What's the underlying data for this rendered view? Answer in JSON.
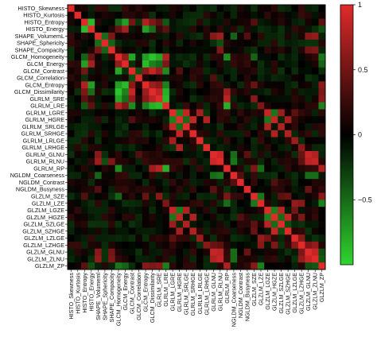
{
  "chart_data": {
    "type": "heatmap",
    "title": "",
    "xlabel": "",
    "ylabel": "",
    "variables": [
      "HISTO_Skewness",
      "HISTO_Kurtosis",
      "HISTO_Entropy",
      "HISTO_Energy",
      "SHAPE_VolumeML",
      "SHAPE_Sphericity",
      "SHAPE_Compacity",
      "GLCM_Homogeneity",
      "GLCM_Energy",
      "GLCM_Contrast",
      "GLCM_Correlation",
      "GLCM_Entropy",
      "GLCM_Dissimilarity",
      "GLRLM_SRE",
      "GLRLM_LRE",
      "GLRLM_LGRE",
      "GLRLM_HGRE",
      "GLRLM_SRLGE",
      "GLRLM_SRHGE",
      "GLRLM_LRLGE",
      "GLRLM_LRHGE",
      "GLRLM_GLNU",
      "GLRLM_RLNU",
      "GLRLM_RP",
      "NGLDM_Coarseness",
      "NGLDM_Contrast",
      "NGLDM_Busyness",
      "GLZLM_SZE",
      "GLZLM_LZE",
      "GLZLM_LGZE",
      "GLZLM_HGZE",
      "GLZLM_SZLGE",
      "GLZLM_SZHGE",
      "GLZLM_LZLGE",
      "GLZLM_LZHGE",
      "GLZLM_GLNU",
      "GLZLM_ZLNU",
      "GLZLM_ZP"
    ],
    "y_tick_labels": [
      "HISTO_Skewness",
      "HISTO_Kurtosis",
      "HISTO_Entropy",
      "HISTO_Energy",
      "SHAPE_VolumemL",
      "SHAPE_Sphericity",
      "SHAPE_Compacity",
      "GLCM_Homogeneity",
      "GLCM_Energy",
      "GLCM_Contrast",
      "GLCM_Correlation",
      "GLCM_Entropy",
      "GLCM_Dissimilarity",
      "GLRLM_SRE",
      "GLRLM_LRE",
      "GLRLM_LGRE",
      "GLRLM_HGRE",
      "GLRLM_SRLGE",
      "GLRLM_SRHGE",
      "GLRLM_LRLGE",
      "GLRLM_LRHGE",
      "GLRLM_GLNU",
      "GLRLM_RLNU",
      "GLRLM_RP",
      "NGLDM_Coarseness",
      "NGLDM_Contrast",
      "NGLDM_Busyness",
      "GLZLM_SZE",
      "GLZLM_LZE",
      "GLZLM_LGZE",
      "GLZLM_HGZE",
      "GLZLM_SZLGE",
      "GLZLM_SZHGE",
      "GLZLM_LZLGE",
      "GLZLM_LZHGE",
      "GLZLM_GLNU",
      "GLZLM_ZLNU",
      "GLZLM_ZP"
    ],
    "x_tick_labels": [
      "HISTO_Skewness",
      "HISTO_Kurtosis",
      "HISTO_Entropy",
      "HISTO_Energy",
      "SHAPE_Volumeml",
      "SHAPE_Sphericity",
      "SHAPE_Compacity",
      "GLCM_Homogeneity",
      "GLCM_Energy",
      "GLCM_Contrast",
      "GLCM_Correlation",
      "GLCM_Entropy",
      "GLCM_Dissimilarity",
      "GLRLM_SRE",
      "GLRLM_LRE",
      "GLRLM_LGRE",
      "GLRLM_HGRE",
      "GLRLM_SRLGE",
      "GLRLM_SRHGE",
      "GLRLM_LRLGE",
      "GLRLM_LRHGE",
      "GLRLM_GLNU",
      "GLRLM_RLNU",
      "GLRLM_RP",
      "NGLDM_Coarseness",
      "NGLDM_Contrast",
      "NGLDM_Busyness",
      "GLZLM_SZE",
      "GLZLM_LZE",
      "GLZLM_LGZE",
      "GLZLM_HGZE",
      "GLZLM_SZLGE",
      "GLZLM_SZHGE",
      "GLZLM_LZLGE",
      "GLZLM_LZHGE",
      "GLZLM_GLNU",
      "GLZLM_ZLNU",
      "GLZLM_ZP"
    ],
    "value_range": [
      -1,
      1
    ],
    "colorbar": {
      "ticks": [
        1,
        0.5,
        0,
        -0.5
      ],
      "tick_labels": [
        "1",
        "0.5",
        "0",
        "−0.5"
      ],
      "colors": {
        "high": "#e12a2a",
        "mid": "#000000",
        "low": "#2fd52f"
      }
    },
    "groups": [
      {
        "name": "HISTO",
        "indices": [
          0,
          1,
          2,
          3
        ]
      },
      {
        "name": "SHAPE",
        "indices": [
          4,
          5,
          6
        ]
      },
      {
        "name": "GLCM",
        "indices": [
          7,
          8,
          9,
          10,
          11,
          12
        ]
      },
      {
        "name": "GLRLM",
        "indices": [
          13,
          14,
          15,
          16,
          17,
          18,
          19,
          20,
          21,
          22,
          23
        ]
      },
      {
        "name": "NGLDM",
        "indices": [
          24,
          25,
          26
        ]
      },
      {
        "name": "GLZLM",
        "indices": [
          27,
          28,
          29,
          30,
          31,
          32,
          33,
          34,
          35,
          36,
          37
        ]
      }
    ],
    "correlations_estimated": [
      {
        "pair": [
          "HISTO_Entropy",
          "HISTO_Energy"
        ],
        "r": -0.85
      },
      {
        "pair": [
          "HISTO_Entropy",
          "GLCM_Entropy"
        ],
        "r": 0.75
      },
      {
        "pair": [
          "HISTO_Energy",
          "GLCM_Energy"
        ],
        "r": 0.7
      },
      {
        "pair": [
          "HISTO_Entropy",
          "GLCM_Energy"
        ],
        "r": -0.7
      },
      {
        "pair": [
          "HISTO_Energy",
          "GLCM_Entropy"
        ],
        "r": -0.7
      },
      {
        "pair": [
          "HISTO_Entropy",
          "GLCM_Homogeneity"
        ],
        "r": -0.4
      },
      {
        "pair": [
          "HISTO_Entropy",
          "GLCM_Contrast"
        ],
        "r": 0.45
      },
      {
        "pair": [
          "HISTO_Entropy",
          "GLCM_Dissimilarity"
        ],
        "r": 0.5
      },
      {
        "pair": [
          "HISTO_Energy",
          "GLCM_Homogeneity"
        ],
        "r": 0.4
      },
      {
        "pair": [
          "HISTO_Energy",
          "GLCM_Dissimilarity"
        ],
        "r": -0.45
      },
      {
        "pair": [
          "HISTO_Entropy",
          "GLRLM_SRE"
        ],
        "r": 0.35
      },
      {
        "pair": [
          "HISTO_Entropy",
          "GLRLM_LRE"
        ],
        "r": -0.35
      },
      {
        "pair": [
          "HISTO_Energy",
          "GLRLM_LRE"
        ],
        "r": 0.35
      },
      {
        "pair": [
          "HISTO_Entropy",
          "GLZLM_SZE"
        ],
        "r": 0.3
      },
      {
        "pair": [
          "HISTO_Energy",
          "GLZLM_ZP"
        ],
        "r": -0.3
      },
      {
        "pair": [
          "HISTO_Entropy",
          "GLZLM_ZP"
        ],
        "r": 0.35
      },
      {
        "pair": [
          "SHAPE_VolumeML",
          "GLRLM_GLNU"
        ],
        "r": 0.55
      },
      {
        "pair": [
          "SHAPE_VolumeML",
          "GLRLM_RLNU"
        ],
        "r": 0.65
      },
      {
        "pair": [
          "SHAPE_VolumeML",
          "GLZLM_GLNU"
        ],
        "r": 0.55
      },
      {
        "pair": [
          "SHAPE_VolumeML",
          "GLZLM_ZLNU"
        ],
        "r": 0.6
      },
      {
        "pair": [
          "SHAPE_VolumeML",
          "SHAPE_Sphericity"
        ],
        "r": -0.45
      },
      {
        "pair": [
          "SHAPE_VolumeML",
          "SHAPE_Compacity"
        ],
        "r": 0.5
      },
      {
        "pair": [
          "SHAPE_VolumeML",
          "NGLDM_Coarseness"
        ],
        "r": -0.4
      },
      {
        "pair": [
          "SHAPE_VolumeML",
          "NGLDM_Busyness"
        ],
        "r": 0.3
      },
      {
        "pair": [
          "SHAPE_Sphericity",
          "SHAPE_Compacity"
        ],
        "r": -0.4
      },
      {
        "pair": [
          "SHAPE_Sphericity",
          "GLRLM_RLNU"
        ],
        "r": -0.3
      },
      {
        "pair": [
          "SHAPE_Compacity",
          "GLRLM_RLNU"
        ],
        "r": 0.5
      },
      {
        "pair": [
          "SHAPE_Compacity",
          "GLZLM_ZLNU"
        ],
        "r": 0.5
      },
      {
        "pair": [
          "SHAPE_Compacity",
          "GLZLM_GLNU"
        ],
        "r": 0.45
      },
      {
        "pair": [
          "GLCM_Homogeneity",
          "GLCM_Energy"
        ],
        "r": 0.6
      },
      {
        "pair": [
          "GLCM_Homogeneity",
          "GLCM_Contrast"
        ],
        "r": -0.75
      },
      {
        "pair": [
          "GLCM_Homogeneity",
          "GLCM_Entropy"
        ],
        "r": -0.7
      },
      {
        "pair": [
          "GLCM_Homogeneity",
          "GLCM_Dissimilarity"
        ],
        "r": -0.9
      },
      {
        "pair": [
          "GLCM_Homogeneity",
          "GLRLM_SRE"
        ],
        "r": -0.75
      },
      {
        "pair": [
          "GLCM_Homogeneity",
          "GLRLM_LRE"
        ],
        "r": 0.75
      },
      {
        "pair": [
          "GLCM_Homogeneity",
          "GLRLM_RP"
        ],
        "r": -0.6
      },
      {
        "pair": [
          "GLCM_Homogeneity",
          "GLZLM_SZE"
        ],
        "r": -0.4
      },
      {
        "pair": [
          "GLCM_Homogeneity",
          "GLZLM_ZP"
        ],
        "r": -0.5
      },
      {
        "pair": [
          "GLCM_Energy",
          "GLCM_Entropy"
        ],
        "r": -0.85
      },
      {
        "pair": [
          "GLCM_Energy",
          "GLCM_Dissimilarity"
        ],
        "r": -0.55
      },
      {
        "pair": [
          "GLCM_Energy",
          "GLRLM_SRE"
        ],
        "r": -0.45
      },
      {
        "pair": [
          "GLCM_Energy",
          "GLRLM_LRE"
        ],
        "r": 0.5
      },
      {
        "pair": [
          "GLCM_Energy",
          "GLZLM_ZP"
        ],
        "r": -0.4
      },
      {
        "pair": [
          "GLCM_Contrast",
          "GLCM_Dissimilarity"
        ],
        "r": 0.85
      },
      {
        "pair": [
          "GLCM_Contrast",
          "GLCM_Entropy"
        ],
        "r": 0.55
      },
      {
        "pair": [
          "GLCM_Contrast",
          "GLRLM_SRE"
        ],
        "r": 0.6
      },
      {
        "pair": [
          "GLCM_Contrast",
          "GLRLM_LRE"
        ],
        "r": -0.6
      },
      {
        "pair": [
          "GLCM_Contrast",
          "GLRLM_HGRE"
        ],
        "r": 0.3
      },
      {
        "pair": [
          "GLCM_Correlation",
          "GLRLM_GLNU"
        ],
        "r": 0.3
      },
      {
        "pair": [
          "GLCM_Correlation",
          "GLCM_Contrast"
        ],
        "r": -0.3
      },
      {
        "pair": [
          "GLCM_Entropy",
          "GLCM_Dissimilarity"
        ],
        "r": 0.65
      },
      {
        "pair": [
          "GLCM_Entropy",
          "GLRLM_SRE"
        ],
        "r": 0.55
      },
      {
        "pair": [
          "GLCM_Entropy",
          "GLRLM_LRE"
        ],
        "r": -0.55
      },
      {
        "pair": [
          "GLCM_Entropy",
          "GLZLM_ZP"
        ],
        "r": 0.55
      },
      {
        "pair": [
          "GLCM_Entropy",
          "GLZLM_SZE"
        ],
        "r": 0.4
      },
      {
        "pair": [
          "GLCM_Dissimilarity",
          "GLRLM_SRE"
        ],
        "r": 0.8
      },
      {
        "pair": [
          "GLCM_Dissimilarity",
          "GLRLM_LRE"
        ],
        "r": -0.8
      },
      {
        "pair": [
          "GLCM_Dissimilarity",
          "GLRLM_RP"
        ],
        "r": 0.65
      },
      {
        "pair": [
          "GLCM_Dissimilarity",
          "GLZLM_ZP"
        ],
        "r": 0.5
      },
      {
        "pair": [
          "GLRLM_SRE",
          "GLRLM_LRE"
        ],
        "r": -0.85
      },
      {
        "pair": [
          "GLRLM_SRE",
          "GLRLM_RP"
        ],
        "r": 0.8
      },
      {
        "pair": [
          "GLRLM_SRE",
          "GLZLM_SZE"
        ],
        "r": 0.55
      },
      {
        "pair": [
          "GLRLM_SRE",
          "GLZLM_ZP"
        ],
        "r": 0.55
      },
      {
        "pair": [
          "GLRLM_LRE",
          "GLRLM_RP"
        ],
        "r": -0.8
      },
      {
        "pair": [
          "GLRLM_LRE",
          "GLZLM_LZE"
        ],
        "r": 0.5
      },
      {
        "pair": [
          "GLRLM_LRE",
          "GLZLM_ZP"
        ],
        "r": -0.55
      },
      {
        "pair": [
          "GLRLM_LGRE",
          "GLRLM_HGRE"
        ],
        "r": -0.55
      },
      {
        "pair": [
          "GLRLM_LGRE",
          "GLRLM_SRLGE"
        ],
        "r": 0.85
      },
      {
        "pair": [
          "GLRLM_LGRE",
          "GLRLM_LRLGE"
        ],
        "r": 0.7
      },
      {
        "pair": [
          "GLRLM_LGRE",
          "GLZLM_LGZE"
        ],
        "r": 0.85
      },
      {
        "pair": [
          "GLRLM_LGRE",
          "GLZLM_SZLGE"
        ],
        "r": 0.65
      },
      {
        "pair": [
          "GLRLM_LGRE",
          "GLZLM_LZLGE"
        ],
        "r": 0.35
      },
      {
        "pair": [
          "GLRLM_LGRE",
          "GLZLM_HGZE"
        ],
        "r": -0.5
      },
      {
        "pair": [
          "GLRLM_HGRE",
          "GLRLM_SRHGE"
        ],
        "r": 0.85
      },
      {
        "pair": [
          "GLRLM_HGRE",
          "GLRLM_LRHGE"
        ],
        "r": 0.75
      },
      {
        "pair": [
          "GLRLM_HGRE",
          "GLZLM_HGZE"
        ],
        "r": 0.85
      },
      {
        "pair": [
          "GLRLM_HGRE",
          "GLZLM_SZHGE"
        ],
        "r": 0.7
      },
      {
        "pair": [
          "GLRLM_HGRE",
          "GLZLM_LGZE"
        ],
        "r": -0.5
      },
      {
        "pair": [
          "GLRLM_HGRE",
          "GLRLM_SRLGE"
        ],
        "r": -0.45
      },
      {
        "pair": [
          "GLRLM_SRLGE",
          "GLZLM_SZLGE"
        ],
        "r": 0.75
      },
      {
        "pair": [
          "GLRLM_SRLGE",
          "GLZLM_LGZE"
        ],
        "r": 0.75
      },
      {
        "pair": [
          "GLRLM_SRHGE",
          "GLZLM_SZHGE"
        ],
        "r": 0.75
      },
      {
        "pair": [
          "GLRLM_SRHGE",
          "GLZLM_HGZE"
        ],
        "r": 0.75
      },
      {
        "pair": [
          "GLRLM_LRLGE",
          "GLZLM_LZLGE"
        ],
        "r": 0.65
      },
      {
        "pair": [
          "GLRLM_LRHGE",
          "GLZLM_LZHGE"
        ],
        "r": 0.55
      },
      {
        "pair": [
          "GLRLM_GLNU",
          "GLRLM_RLNU"
        ],
        "r": 0.9
      },
      {
        "pair": [
          "GLRLM_GLNU",
          "GLZLM_GLNU"
        ],
        "r": 0.85
      },
      {
        "pair": [
          "GLRLM_GLNU",
          "GLZLM_ZLNU"
        ],
        "r": 0.75
      },
      {
        "pair": [
          "GLRLM_GLNU",
          "NGLDM_Coarseness"
        ],
        "r": -0.45
      },
      {
        "pair": [
          "GLRLM_GLNU",
          "NGLDM_Busyness"
        ],
        "r": 0.35
      },
      {
        "pair": [
          "GLRLM_GLNU",
          "GLZLM_LZHGE"
        ],
        "r": 0.4
      },
      {
        "pair": [
          "GLRLM_RLNU",
          "GLZLM_GLNU"
        ],
        "r": 0.8
      },
      {
        "pair": [
          "GLRLM_RLNU",
          "GLZLM_ZLNU"
        ],
        "r": 0.85
      },
      {
        "pair": [
          "GLRLM_RLNU",
          "NGLDM_Coarseness"
        ],
        "r": -0.5
      },
      {
        "pair": [
          "GLRLM_RLNU",
          "GLZLM_LZHGE"
        ],
        "r": 0.35
      },
      {
        "pair": [
          "GLRLM_RP",
          "GLZLM_ZP"
        ],
        "r": 0.75
      },
      {
        "pair": [
          "GLRLM_RP",
          "GLZLM_SZE"
        ],
        "r": 0.5
      },
      {
        "pair": [
          "GLRLM_RP",
          "GLZLM_LZE"
        ],
        "r": -0.45
      },
      {
        "pair": [
          "NGLDM_Coarseness",
          "NGLDM_Contrast"
        ],
        "r": 0.3
      },
      {
        "pair": [
          "NGLDM_Coarseness",
          "GLZLM_GLNU"
        ],
        "r": -0.45
      },
      {
        "pair": [
          "NGLDM_Coarseness",
          "GLZLM_ZLNU"
        ],
        "r": -0.45
      },
      {
        "pair": [
          "NGLDM_Contrast",
          "GLZLM_HGZE"
        ],
        "r": 0.3
      },
      {
        "pair": [
          "NGLDM_Busyness",
          "GLZLM_GLNU"
        ],
        "r": 0.4
      },
      {
        "pair": [
          "GLZLM_SZE",
          "GLZLM_LZE"
        ],
        "r": -0.5
      },
      {
        "pair": [
          "GLZLM_SZE",
          "GLZLM_ZP"
        ],
        "r": 0.55
      },
      {
        "pair": [
          "GLZLM_SZE",
          "GLZLM_SZLGE"
        ],
        "r": 0.35
      },
      {
        "pair": [
          "GLZLM_SZE",
          "GLZLM_SZHGE"
        ],
        "r": 0.4
      },
      {
        "pair": [
          "GLZLM_LZE",
          "GLZLM_LZLGE"
        ],
        "r": 0.6
      },
      {
        "pair": [
          "GLZLM_LZE",
          "GLZLM_LZHGE"
        ],
        "r": 0.55
      },
      {
        "pair": [
          "GLZLM_LZE",
          "GLZLM_ZP"
        ],
        "r": -0.55
      },
      {
        "pair": [
          "GLZLM_LGZE",
          "GLZLM_HGZE"
        ],
        "r": -0.55
      },
      {
        "pair": [
          "GLZLM_LGZE",
          "GLZLM_SZLGE"
        ],
        "r": 0.8
      },
      {
        "pair": [
          "GLZLM_LGZE",
          "GLZLM_LZLGE"
        ],
        "r": 0.45
      },
      {
        "pair": [
          "GLZLM_HGZE",
          "GLZLM_SZHGE"
        ],
        "r": 0.85
      },
      {
        "pair": [
          "GLZLM_HGZE",
          "GLZLM_LZHGE"
        ],
        "r": 0.5
      },
      {
        "pair": [
          "GLZLM_HGZE",
          "GLZLM_SZLGE"
        ],
        "r": -0.45
      },
      {
        "pair": [
          "GLZLM_SZLGE",
          "GLZLM_SZHGE"
        ],
        "r": -0.3
      },
      {
        "pair": [
          "GLZLM_LZLGE",
          "GLZLM_LZHGE"
        ],
        "r": 0.55
      },
      {
        "pair": [
          "GLZLM_LZHGE",
          "GLZLM_GLNU"
        ],
        "r": 0.5
      },
      {
        "pair": [
          "GLZLM_LZHGE",
          "GLZLM_ZLNU"
        ],
        "r": 0.6
      },
      {
        "pair": [
          "GLZLM_GLNU",
          "GLZLM_ZLNU"
        ],
        "r": 0.85
      },
      {
        "pair": [
          "GLZLM_GLNU",
          "GLZLM_ZP"
        ],
        "r": -0.3
      },
      {
        "pair": [
          "GLZLM_ZLNU",
          "GLZLM_ZP"
        ],
        "r": -0.35
      }
    ]
  }
}
